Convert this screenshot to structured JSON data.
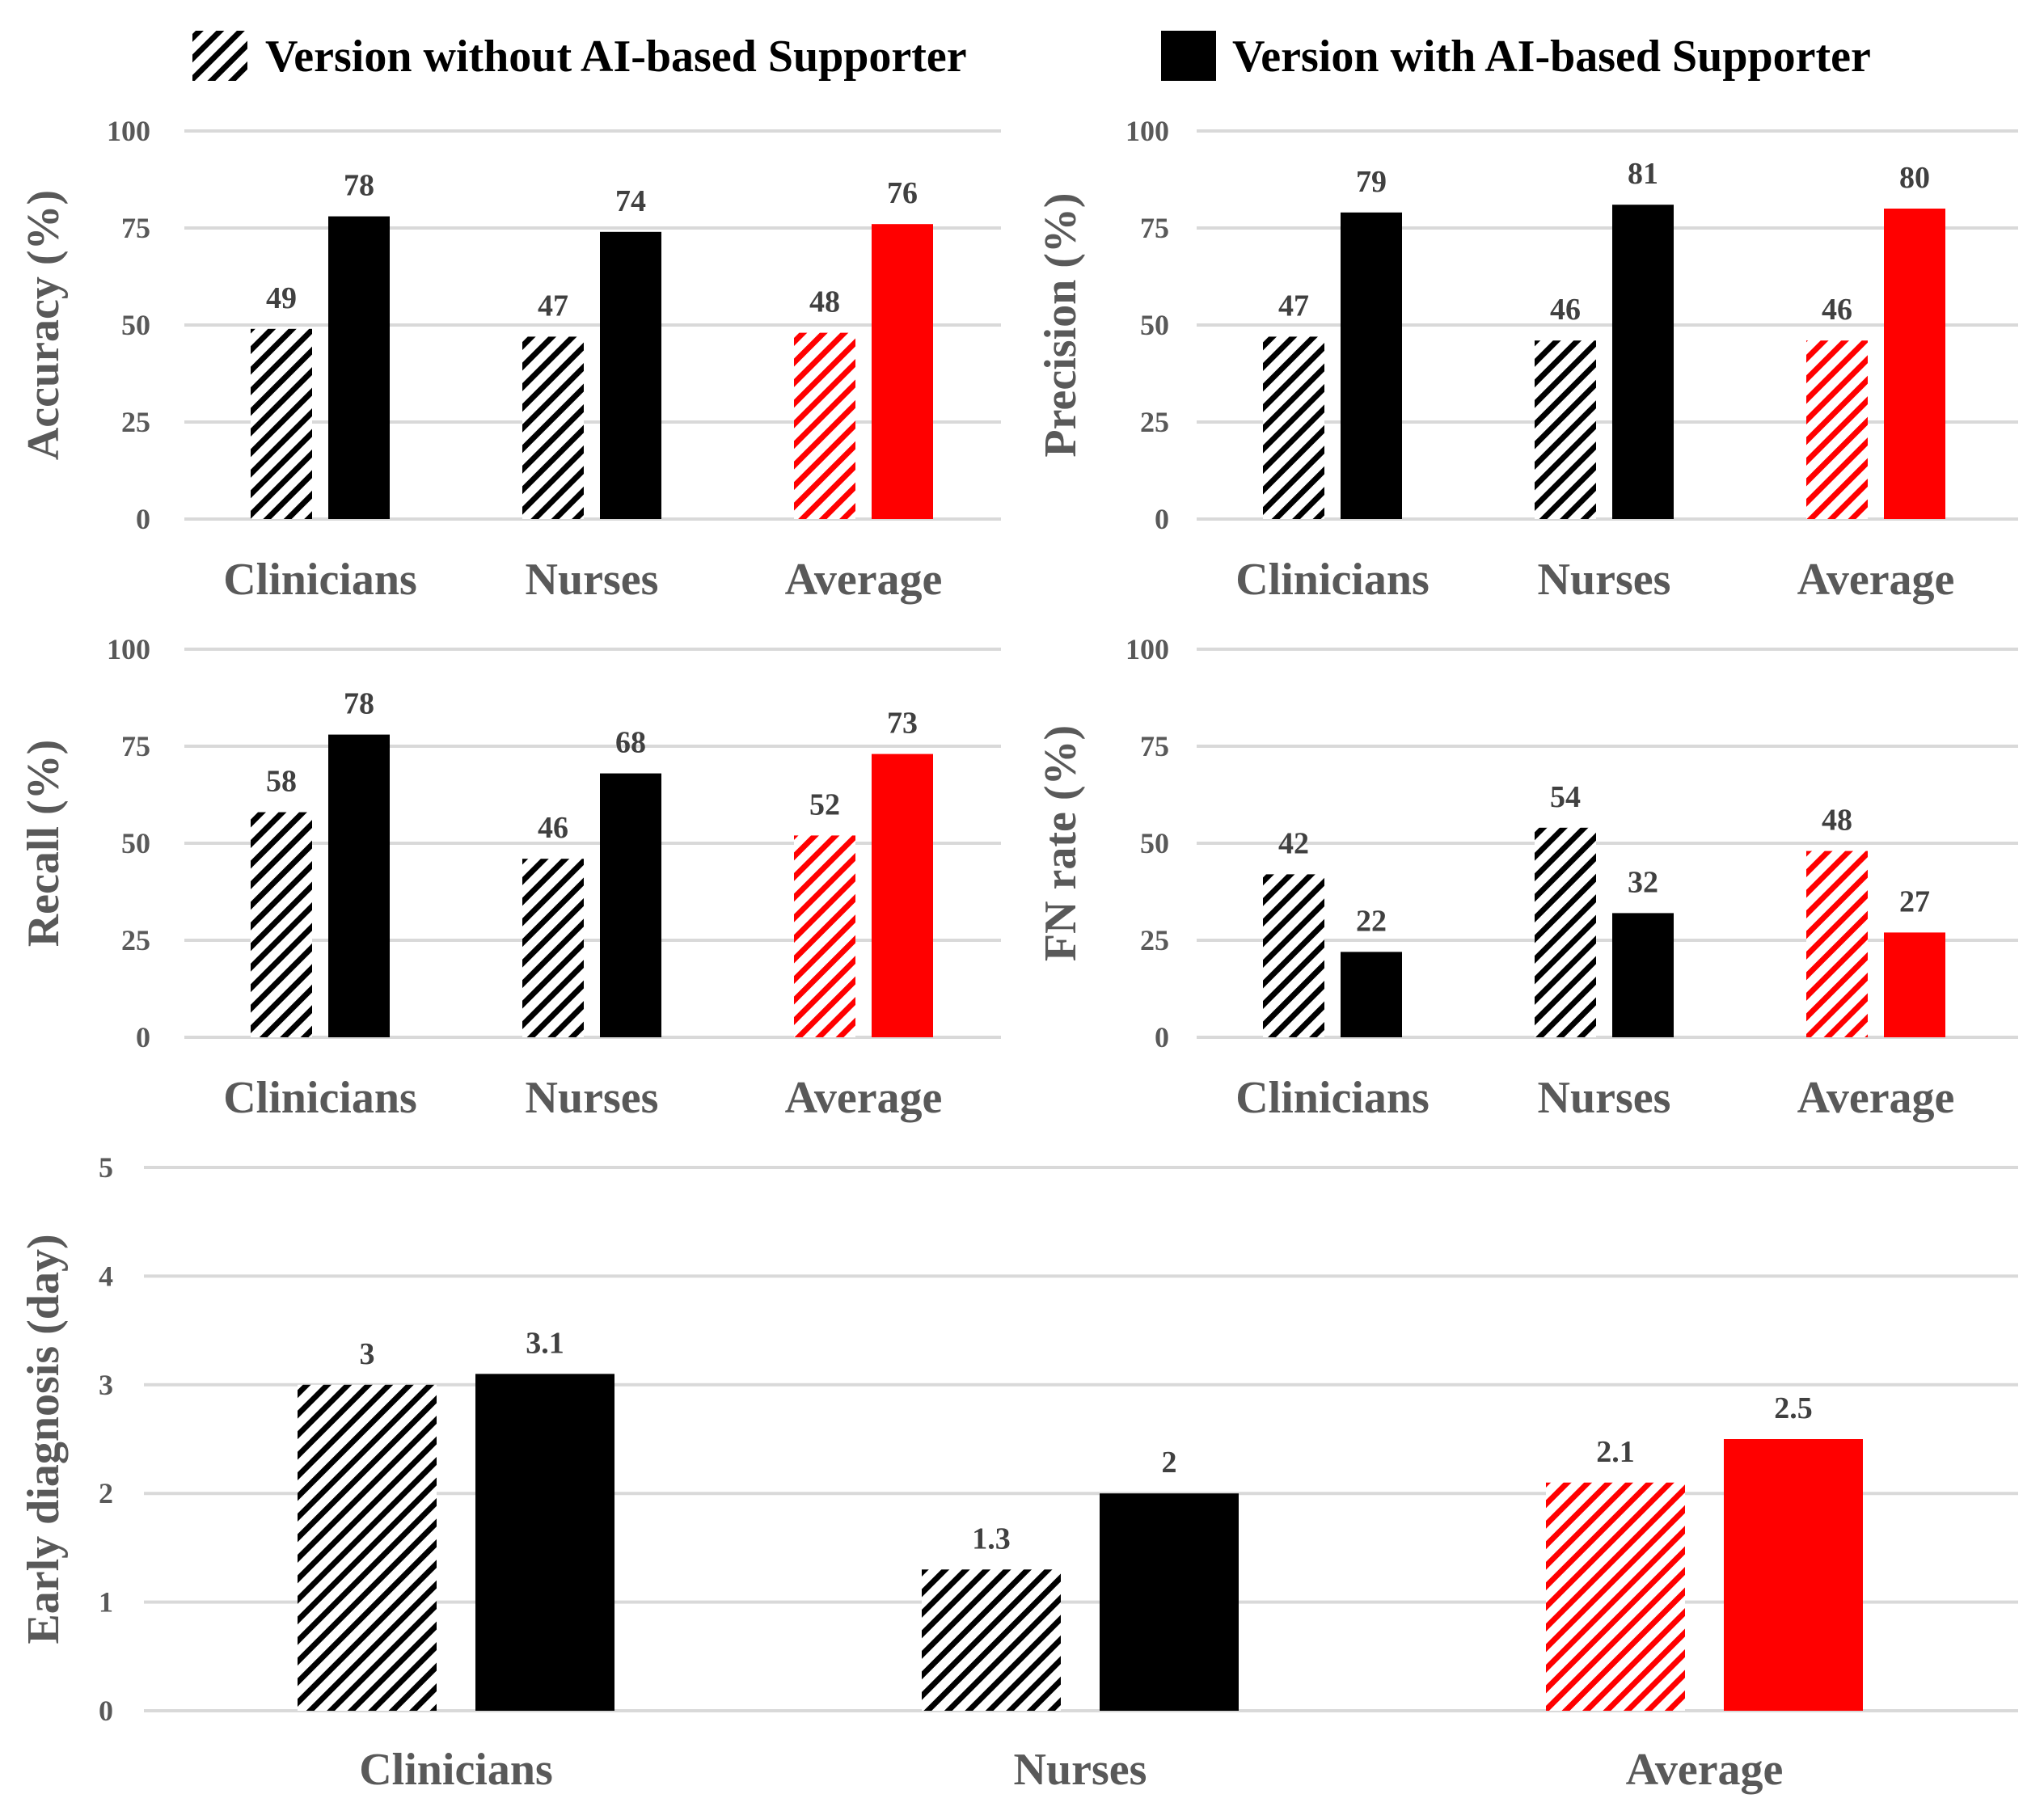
{
  "colors": {
    "black": "#000000",
    "red": "#ff0000",
    "grid": "#d9d9d9",
    "tick": "#595959",
    "label": "#404040"
  },
  "legend": [
    {
      "label": "Version without AI-based Supporter",
      "style": "hatched-black"
    },
    {
      "label": "Version with AI-based Supporter",
      "style": "solid-black"
    }
  ],
  "chart_data": [
    {
      "type": "bar",
      "id": "accuracy",
      "ylabel": "Accuracy (%)",
      "categories": [
        "Clinicians",
        "Nurses",
        "Average"
      ],
      "series": [
        {
          "name": "Version without AI-based Supporter",
          "values": [
            49,
            47,
            48
          ],
          "labels": [
            "49",
            "47",
            "48"
          ]
        },
        {
          "name": "Version with AI-based Supporter",
          "values": [
            78,
            74,
            76
          ],
          "labels": [
            "78",
            "74",
            "76"
          ]
        }
      ],
      "ylim": [
        0,
        100
      ],
      "yticks": [
        "0",
        "25",
        "50",
        "75",
        "100"
      ],
      "grid": true,
      "highlight_category": "Average"
    },
    {
      "type": "bar",
      "id": "precision",
      "ylabel": "Precision (%)",
      "categories": [
        "Clinicians",
        "Nurses",
        "Average"
      ],
      "series": [
        {
          "name": "Version without AI-based Supporter",
          "values": [
            47,
            46,
            46
          ],
          "labels": [
            "47",
            "46",
            "46"
          ]
        },
        {
          "name": "Version with AI-based Supporter",
          "values": [
            79,
            81,
            80
          ],
          "labels": [
            "79",
            "81",
            "80"
          ]
        }
      ],
      "ylim": [
        0,
        100
      ],
      "yticks": [
        "0",
        "25",
        "50",
        "75",
        "100"
      ],
      "grid": true,
      "highlight_category": "Average"
    },
    {
      "type": "bar",
      "id": "recall",
      "ylabel": "Recall (%)",
      "categories": [
        "Clinicians",
        "Nurses",
        "Average"
      ],
      "series": [
        {
          "name": "Version without AI-based Supporter",
          "values": [
            58,
            46,
            52
          ],
          "labels": [
            "58",
            "46",
            "52"
          ]
        },
        {
          "name": "Version with AI-based Supporter",
          "values": [
            78,
            68,
            73
          ],
          "labels": [
            "78",
            "68",
            "73"
          ]
        }
      ],
      "ylim": [
        0,
        100
      ],
      "yticks": [
        "0",
        "25",
        "50",
        "75",
        "100"
      ],
      "grid": true,
      "highlight_category": "Average"
    },
    {
      "type": "bar",
      "id": "fnrate",
      "ylabel": "FN rate (%)",
      "categories": [
        "Clinicians",
        "Nurses",
        "Average"
      ],
      "series": [
        {
          "name": "Version without AI-based Supporter",
          "values": [
            42,
            54,
            48
          ],
          "labels": [
            "42",
            "54",
            "48"
          ]
        },
        {
          "name": "Version with AI-based Supporter",
          "values": [
            22,
            32,
            27
          ],
          "labels": [
            "22",
            "32",
            "27"
          ]
        }
      ],
      "ylim": [
        0,
        100
      ],
      "yticks": [
        "0",
        "25",
        "50",
        "75",
        "100"
      ],
      "grid": true,
      "highlight_category": "Average"
    },
    {
      "type": "bar",
      "id": "early",
      "ylabel": "Early diagnosis (day)",
      "categories": [
        "Clinicians",
        "Nurses",
        "Average"
      ],
      "series": [
        {
          "name": "Version without AI-based Supporter",
          "values": [
            3,
            1.3,
            2.1
          ],
          "labels": [
            "3",
            "1.3",
            "2.1"
          ]
        },
        {
          "name": "Version with AI-based Supporter",
          "values": [
            3.1,
            2,
            2.5
          ],
          "labels": [
            "3.1",
            "2",
            "2.5"
          ]
        }
      ],
      "ylim": [
        0,
        5
      ],
      "yticks": [
        "0",
        "1",
        "2",
        "3",
        "4",
        "5"
      ],
      "grid": true,
      "highlight_category": "Average"
    }
  ]
}
